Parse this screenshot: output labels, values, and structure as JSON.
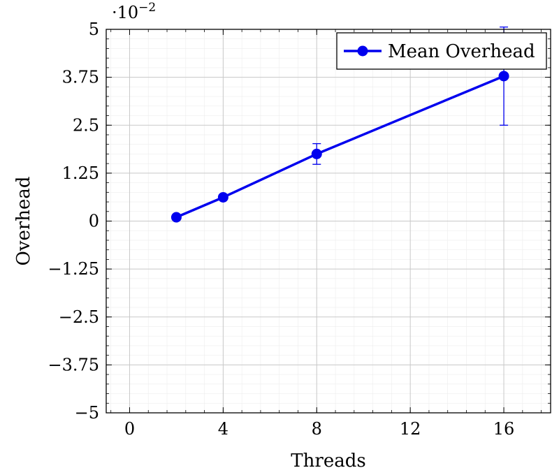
{
  "chart_data": {
    "type": "line",
    "scale_label": "·10",
    "scale_exponent": "−2",
    "xlabel": "Threads",
    "ylabel": "Overhead",
    "xlim": [
      -1,
      18
    ],
    "ylim": [
      -5,
      5
    ],
    "x_ticks": [
      0,
      4,
      8,
      12,
      16
    ],
    "x_tick_labels": [
      "0",
      "4",
      "8",
      "12",
      "16"
    ],
    "y_ticks": [
      -5,
      -3.75,
      -2.5,
      -1.25,
      0,
      1.25,
      2.5,
      3.75,
      5
    ],
    "y_tick_labels": [
      "−5",
      "−3.75",
      "−2.5",
      "−1.25",
      "0",
      "1.25",
      "2.5",
      "3.75",
      "5"
    ],
    "grid": true,
    "legend_position": "top-right",
    "series": [
      {
        "name": "Mean Overhead",
        "color": "#0000ee",
        "points": [
          {
            "x": 2,
            "y": 0.1,
            "err_low": 0,
            "err_high": 0
          },
          {
            "x": 4,
            "y": 0.62,
            "err_low": 0,
            "err_high": 0
          },
          {
            "x": 8,
            "y": 1.75,
            "err_low": 0.27,
            "err_high": 0.27
          },
          {
            "x": 16,
            "y": 3.78,
            "err_low": 1.28,
            "err_high": 1.28
          }
        ]
      }
    ]
  }
}
